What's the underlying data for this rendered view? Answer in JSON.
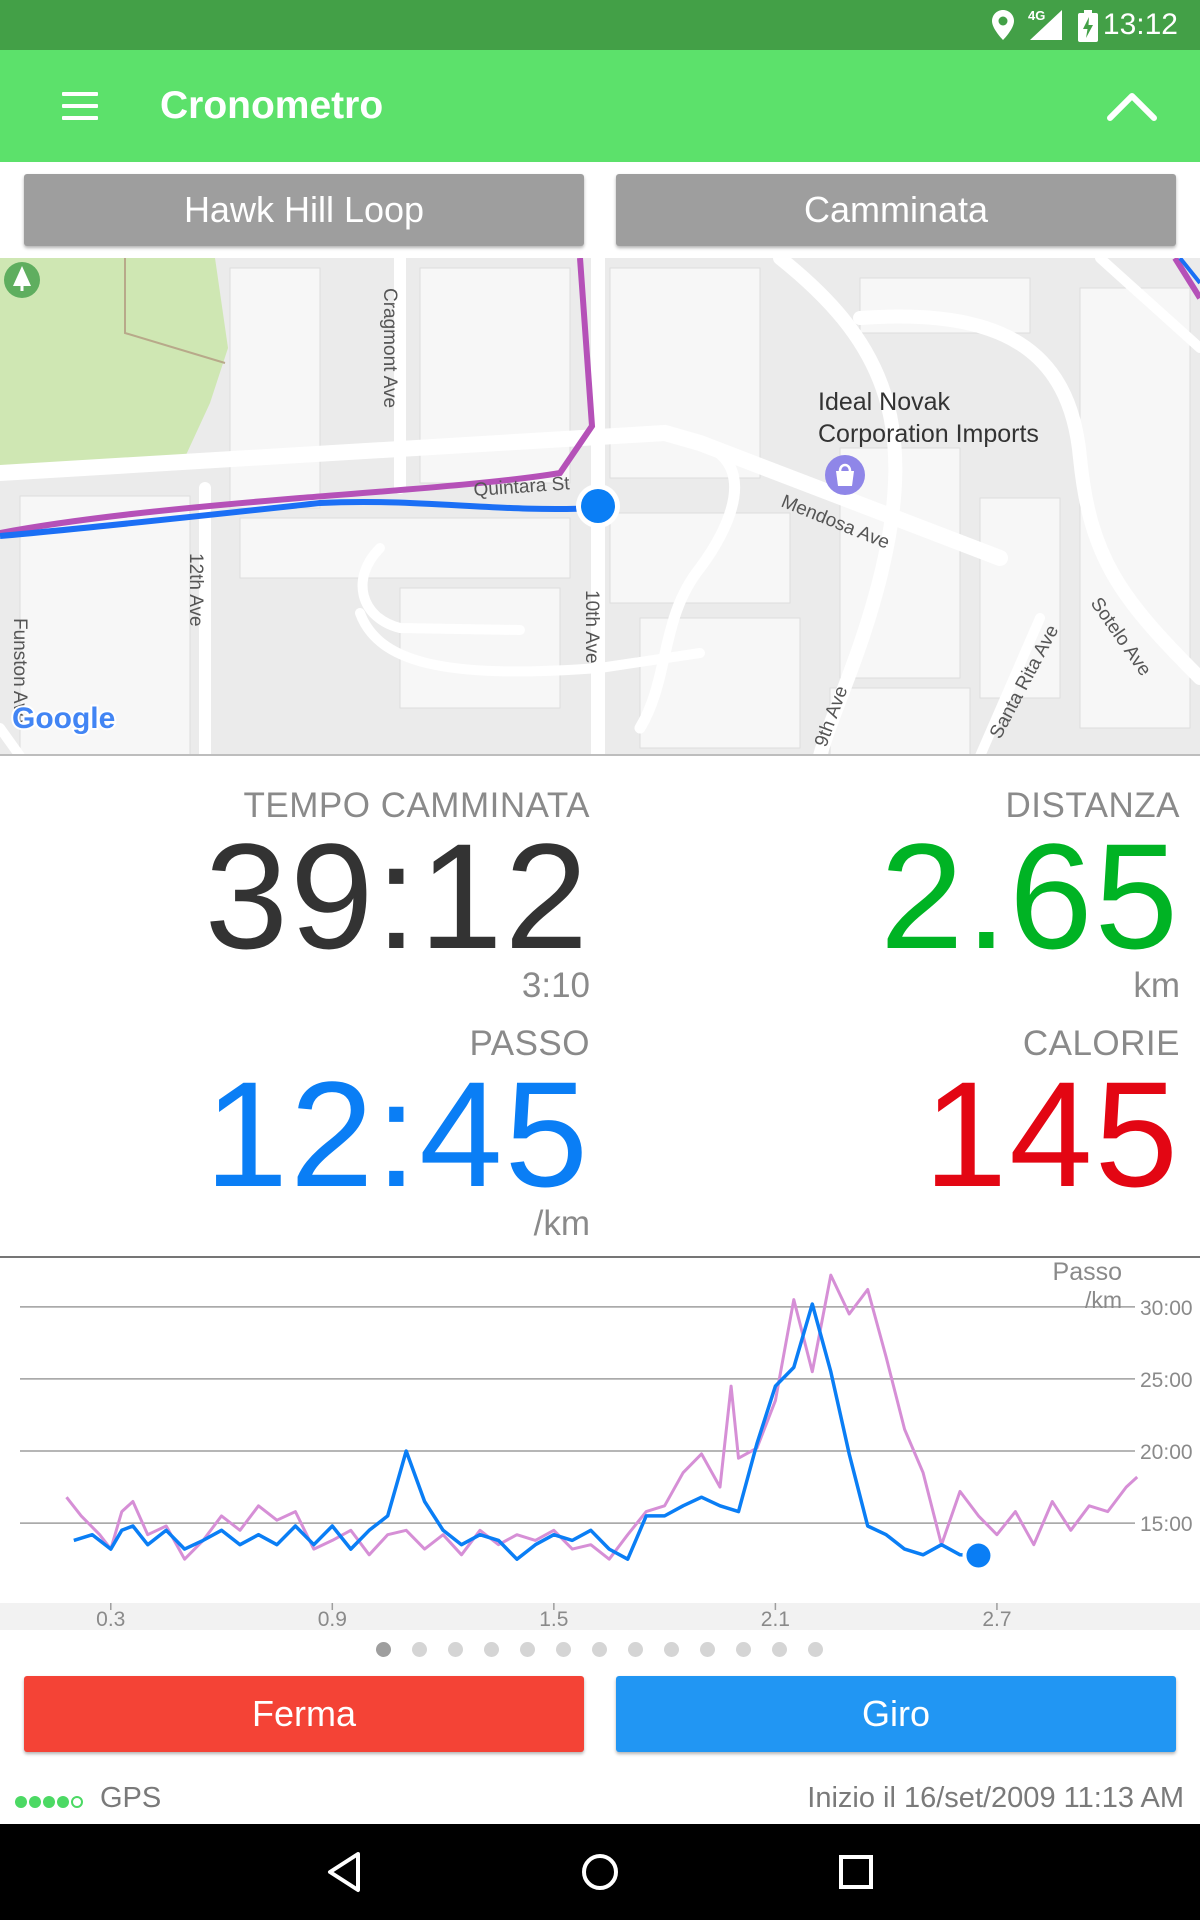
{
  "status_bar": {
    "time": "13:12",
    "network": "4G",
    "icons": [
      "location-icon",
      "signal-icon",
      "battery-charging-icon"
    ]
  },
  "app_bar": {
    "title": "Cronometro",
    "menu_icon": "hamburger-menu-icon",
    "collapse_icon": "chevron-up-icon"
  },
  "selectors": {
    "route": "Hawk Hill Loop",
    "activity": "Camminata"
  },
  "map": {
    "streets": [
      "Cragmont Ave",
      "Quintara St",
      "Mendosa Ave",
      "12th Ave",
      "10th Ave",
      "9th Ave",
      "Santa Rita Ave",
      "Sotelo Ave",
      "Funston Ave"
    ],
    "poi_name_line1": "Ideal Novak",
    "poi_name_line2": "Corporation Imports",
    "logo": "Google"
  },
  "stats": {
    "time": {
      "label": "TEMPO CAMMINATA",
      "value": "39:12",
      "sub": "3:10"
    },
    "distance": {
      "label": "DISTANZA",
      "value": "2.65",
      "unit": "km"
    },
    "pace": {
      "label": "PASSO",
      "value": "12:45",
      "unit": "/km"
    },
    "calories": {
      "label": "CALORIE",
      "value": "145"
    }
  },
  "colors": {
    "distance": "#00b324",
    "pace": "#0a7ef5",
    "calories": "#e30613",
    "stop": "#f44336",
    "lap": "#2196f3",
    "appbar": "#5ce16b"
  },
  "chart_data": {
    "type": "line",
    "ylabel": "Passo",
    "yunit": "/km",
    "y_ticks": [
      "30:00",
      "25:00",
      "20:00",
      "15:00"
    ],
    "y_tick_values": [
      30,
      25,
      20,
      15
    ],
    "x_ticks": [
      "0.3",
      "0.9",
      "1.5",
      "2.1",
      "2.7"
    ],
    "x_tick_values": [
      0.3,
      0.9,
      1.5,
      2.1,
      2.7
    ],
    "xlim": [
      0.0,
      3.25
    ],
    "ylim": [
      10.5,
      32
    ],
    "grid": true,
    "current_point": {
      "x": 2.65,
      "y": 12.75
    },
    "series": [
      {
        "color": "#d68fd6",
        "x": [
          0.18,
          0.22,
          0.27,
          0.3,
          0.33,
          0.36,
          0.4,
          0.45,
          0.5,
          0.55,
          0.6,
          0.65,
          0.7,
          0.75,
          0.8,
          0.85,
          0.9,
          0.95,
          1.0,
          1.05,
          1.1,
          1.15,
          1.2,
          1.25,
          1.3,
          1.35,
          1.4,
          1.45,
          1.5,
          1.55,
          1.6,
          1.65,
          1.7,
          1.75,
          1.8,
          1.85,
          1.9,
          1.95,
          1.98,
          2.0,
          2.05,
          2.1,
          2.15,
          2.2,
          2.25,
          2.3,
          2.35,
          2.4,
          2.45,
          2.5,
          2.55,
          2.6,
          2.65,
          2.7,
          2.75,
          2.8,
          2.85,
          2.9,
          2.95,
          3.0,
          3.05,
          3.08
        ],
        "y": [
          16.8,
          15.5,
          14.2,
          13.2,
          15.8,
          16.5,
          14.2,
          14.8,
          12.5,
          13.8,
          15.5,
          14.5,
          16.2,
          15.2,
          15.8,
          13.2,
          13.8,
          14.5,
          12.8,
          14.2,
          14.5,
          13.2,
          14.2,
          12.8,
          14.5,
          13.5,
          14.2,
          13.8,
          14.5,
          13.2,
          13.5,
          12.5,
          14.2,
          15.8,
          16.2,
          18.5,
          19.8,
          17.5,
          24.5,
          19.5,
          20.2,
          23.5,
          30.5,
          25.5,
          32.2,
          29.5,
          31.2,
          26.5,
          21.5,
          18.5,
          13.5,
          17.2,
          15.5,
          14.2,
          15.8,
          13.5,
          16.5,
          14.5,
          16.2,
          15.8,
          17.5,
          18.2
        ]
      },
      {
        "color": "#0a7ef5",
        "x": [
          0.2,
          0.25,
          0.3,
          0.33,
          0.36,
          0.4,
          0.45,
          0.5,
          0.55,
          0.6,
          0.65,
          0.7,
          0.75,
          0.8,
          0.85,
          0.9,
          0.95,
          1.0,
          1.05,
          1.1,
          1.15,
          1.2,
          1.25,
          1.3,
          1.35,
          1.4,
          1.45,
          1.5,
          1.55,
          1.6,
          1.65,
          1.7,
          1.75,
          1.8,
          1.85,
          1.9,
          1.95,
          2.0,
          2.05,
          2.1,
          2.15,
          2.2,
          2.25,
          2.3,
          2.35,
          2.4,
          2.45,
          2.5,
          2.55,
          2.6,
          2.65
        ],
        "y": [
          13.8,
          14.2,
          13.2,
          14.5,
          14.8,
          13.5,
          14.5,
          13.2,
          13.8,
          14.5,
          13.5,
          14.2,
          13.5,
          14.8,
          13.5,
          14.8,
          13.2,
          14.5,
          15.5,
          20.0,
          16.5,
          14.5,
          13.5,
          14.2,
          13.8,
          12.5,
          13.5,
          14.2,
          13.8,
          14.5,
          13.2,
          12.5,
          15.5,
          15.5,
          16.2,
          16.8,
          16.2,
          15.8,
          20.5,
          24.5,
          25.8,
          30.2,
          25.5,
          19.8,
          14.8,
          14.2,
          13.2,
          12.8,
          13.5,
          12.8,
          12.75
        ]
      }
    ]
  },
  "pager": {
    "count": 13,
    "active": 0
  },
  "buttons": {
    "stop": "Ferma",
    "lap": "Giro"
  },
  "footer": {
    "gps": "GPS",
    "start": "Inizio il 16/set/2009 11:13 AM"
  }
}
